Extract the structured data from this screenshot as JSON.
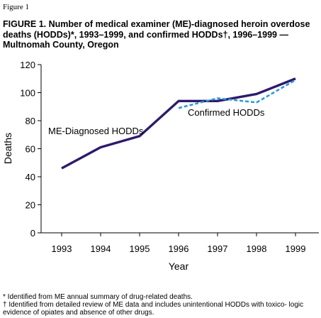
{
  "figure_label": "Figure 1",
  "figure_title": "FIGURE 1. Number of medical examiner (ME)-diagnosed heroin overdose deaths (HODDs)*, 1993–1999, and confirmed HODDs†,  1996–1999 — Multnomah County, Oregon",
  "footnotes": [
    "* Identified from ME annual summary of drug-related deaths.",
    "† Identified from detailed review of ME data and includes unintentional HODDs with toxico- logic evidence of opiates and absence of other drugs."
  ],
  "chart_data": {
    "type": "line",
    "xlabel": "Year",
    "ylabel": "Deaths",
    "x": [
      1993,
      1994,
      1995,
      1996,
      1997,
      1998,
      1999
    ],
    "ylim": [
      0,
      120
    ],
    "yticks": [
      0,
      20,
      40,
      60,
      80,
      100,
      120
    ],
    "grid": false,
    "series": [
      {
        "name": "ME-Diagnosed HODDs",
        "x": [
          1993,
          1994,
          1995,
          1996,
          1997,
          1998,
          1999
        ],
        "values": [
          46,
          61,
          69,
          94,
          94,
          99,
          110
        ],
        "color": "#2e1a6b",
        "style": "solid"
      },
      {
        "name": "Confirmed HODDs",
        "x": [
          1996,
          1997,
          1998,
          1999
        ],
        "values": [
          89,
          96,
          93,
          109
        ],
        "color": "#2b9bd6",
        "style": "dashed"
      }
    ]
  }
}
